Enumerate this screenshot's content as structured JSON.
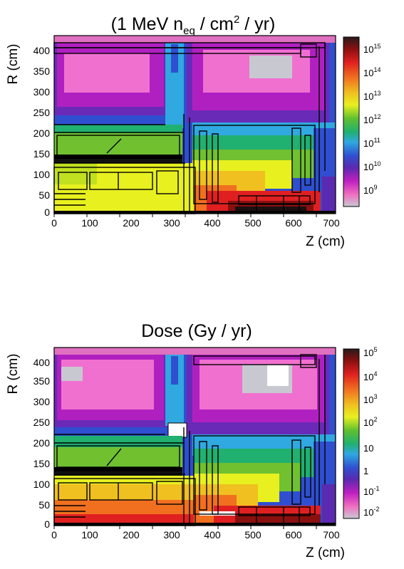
{
  "chart_data": [
    {
      "type": "heatmap",
      "title": "(1 MeV n",
      "title_sub": "eq",
      "title_rest": " / cm",
      "title_sup": "2",
      "title_end": " / yr)",
      "xlabel": "Z (cm)",
      "ylabel": "R (cm)",
      "xlim": [
        0,
        700
      ],
      "ylim": [
        0,
        430
      ],
      "xticks": [
        "0",
        "100",
        "200",
        "300",
        "400",
        "500",
        "600",
        "700"
      ],
      "yticks": [
        "0",
        "50",
        "100",
        "150",
        "200",
        "250",
        "300",
        "350",
        "400"
      ],
      "colorbar": {
        "scale": "log",
        "labels": [
          {
            "base": "10",
            "exp": "15"
          },
          {
            "base": "10",
            "exp": "14"
          },
          {
            "base": "10",
            "exp": "13"
          },
          {
            "base": "10",
            "exp": "12"
          },
          {
            "base": "10",
            "exp": "11"
          },
          {
            "base": "10",
            "exp": "10"
          },
          {
            "base": "10",
            "exp": "9"
          }
        ]
      }
    },
    {
      "type": "heatmap",
      "title": "Dose (Gy / yr)",
      "xlabel": "Z (cm)",
      "ylabel": "R (cm)",
      "xlim": [
        0,
        700
      ],
      "ylim": [
        0,
        430
      ],
      "xticks": [
        "0",
        "100",
        "200",
        "300",
        "400",
        "500",
        "600",
        "700"
      ],
      "yticks": [
        "0",
        "50",
        "100",
        "150",
        "200",
        "250",
        "300",
        "350",
        "400"
      ],
      "colorbar": {
        "scale": "log",
        "labels": [
          {
            "base": "10",
            "exp": "5"
          },
          {
            "base": "10",
            "exp": "4"
          },
          {
            "base": "10",
            "exp": "3"
          },
          {
            "base": "10",
            "exp": "2"
          },
          {
            "base": "10",
            "exp": ""
          },
          {
            "base": "1",
            "exp": ""
          },
          {
            "base": "10",
            "exp": "-1"
          },
          {
            "base": "10",
            "exp": "-2"
          }
        ]
      }
    }
  ]
}
